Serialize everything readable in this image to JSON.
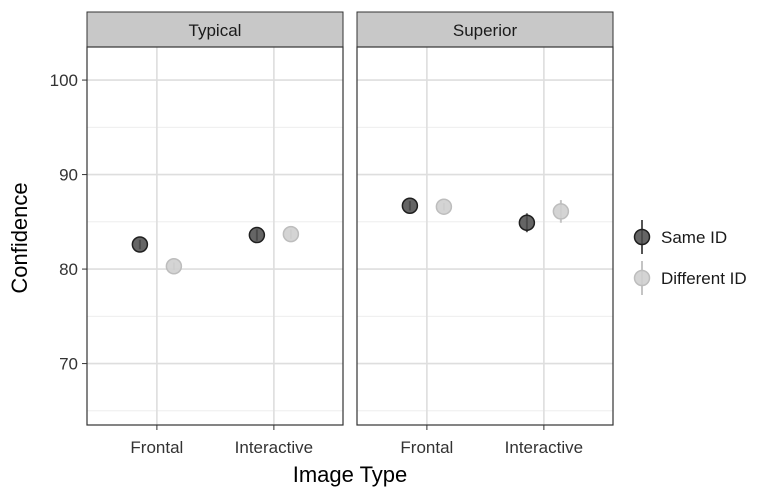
{
  "chart_data": {
    "type": "scatter",
    "xlabel": "Image Type",
    "ylabel": "Confidence",
    "categories": [
      "Frontal",
      "Interactive"
    ],
    "yticks": [
      70,
      80,
      90,
      100
    ],
    "ylim": [
      63.5,
      103.5
    ],
    "grid": true,
    "legend_position": "right",
    "panels": [
      {
        "title": "Typical",
        "series": [
          {
            "name": "Same ID",
            "values": [
              82.6,
              83.6
            ],
            "errors": [
              0.5,
              0.6
            ]
          },
          {
            "name": "Different ID",
            "values": [
              80.3,
              83.7
            ],
            "errors": [
              0.4,
              0.5
            ]
          }
        ]
      },
      {
        "title": "Superior",
        "series": [
          {
            "name": "Same ID",
            "values": [
              86.7,
              84.9
            ],
            "errors": [
              0.5,
              1.0
            ]
          },
          {
            "name": "Different ID",
            "values": [
              86.6,
              86.1
            ],
            "errors": [
              0.4,
              1.2
            ]
          }
        ]
      }
    ],
    "colors": {
      "Same ID": "#4a4a4a",
      "Different ID": "#cfcfcf"
    }
  }
}
